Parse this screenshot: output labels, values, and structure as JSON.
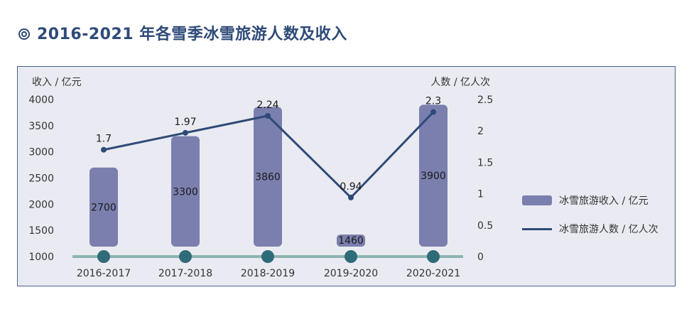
{
  "title": "2016-2021 年各雪季冰雪旅游人数及收入",
  "colors": {
    "bar": "#7a7fae",
    "line": "#2e4a78",
    "baseline": "#8fb4b0",
    "marker": "#2f6b78",
    "frame_bg": "#eaebf2"
  },
  "chart_data": {
    "type": "bar",
    "categories": [
      "2016-2017",
      "2017-2018",
      "2018-2019",
      "2019-2020",
      "2020-2021"
    ],
    "series": [
      {
        "name": "冰雪旅游收入 / 亿元",
        "type": "bar",
        "axis": "left",
        "values": [
          2700,
          3300,
          3860,
          1460,
          3900
        ],
        "labels": [
          "2700",
          "3300",
          "3860",
          "1460",
          "3900"
        ]
      },
      {
        "name": "冰雪旅游人数 / 亿人次",
        "type": "line",
        "axis": "right",
        "values": [
          1.7,
          1.97,
          2.24,
          0.94,
          2.3
        ],
        "labels": [
          "1.7",
          "1.97",
          "2.24",
          "0.94",
          "2.3"
        ]
      }
    ],
    "ylabel_left": "收入 / 亿元",
    "ylabel_right": "人数 / 亿人次",
    "ylim_left": [
      1000,
      4000
    ],
    "ylim_right": [
      0,
      2.5
    ],
    "yticks_left": [
      "1000",
      "1500",
      "2000",
      "2500",
      "3000",
      "3500",
      "4000"
    ],
    "yticks_right": [
      "0",
      "0.5",
      "1",
      "1.5",
      "2",
      "2.5"
    ],
    "legend_position": "right"
  }
}
